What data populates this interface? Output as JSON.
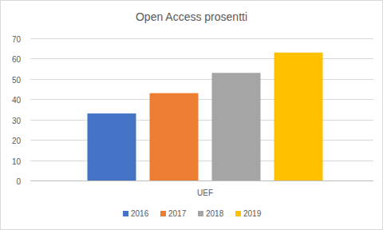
{
  "chart_data": {
    "type": "bar",
    "title": "Open Access prosentti",
    "categories": [
      "UEF"
    ],
    "series": [
      {
        "name": "2016",
        "color": "#4472c4",
        "values": [
          33
        ]
      },
      {
        "name": "2017",
        "color": "#ed7d31",
        "values": [
          43
        ]
      },
      {
        "name": "2018",
        "color": "#a5a5a5",
        "values": [
          53
        ]
      },
      {
        "name": "2019",
        "color": "#ffc000",
        "values": [
          63
        ]
      }
    ],
    "ylim": [
      0,
      70
    ],
    "yticks": [
      0,
      10,
      20,
      30,
      40,
      50,
      60,
      70
    ],
    "grid": true,
    "legend": "bottom"
  }
}
